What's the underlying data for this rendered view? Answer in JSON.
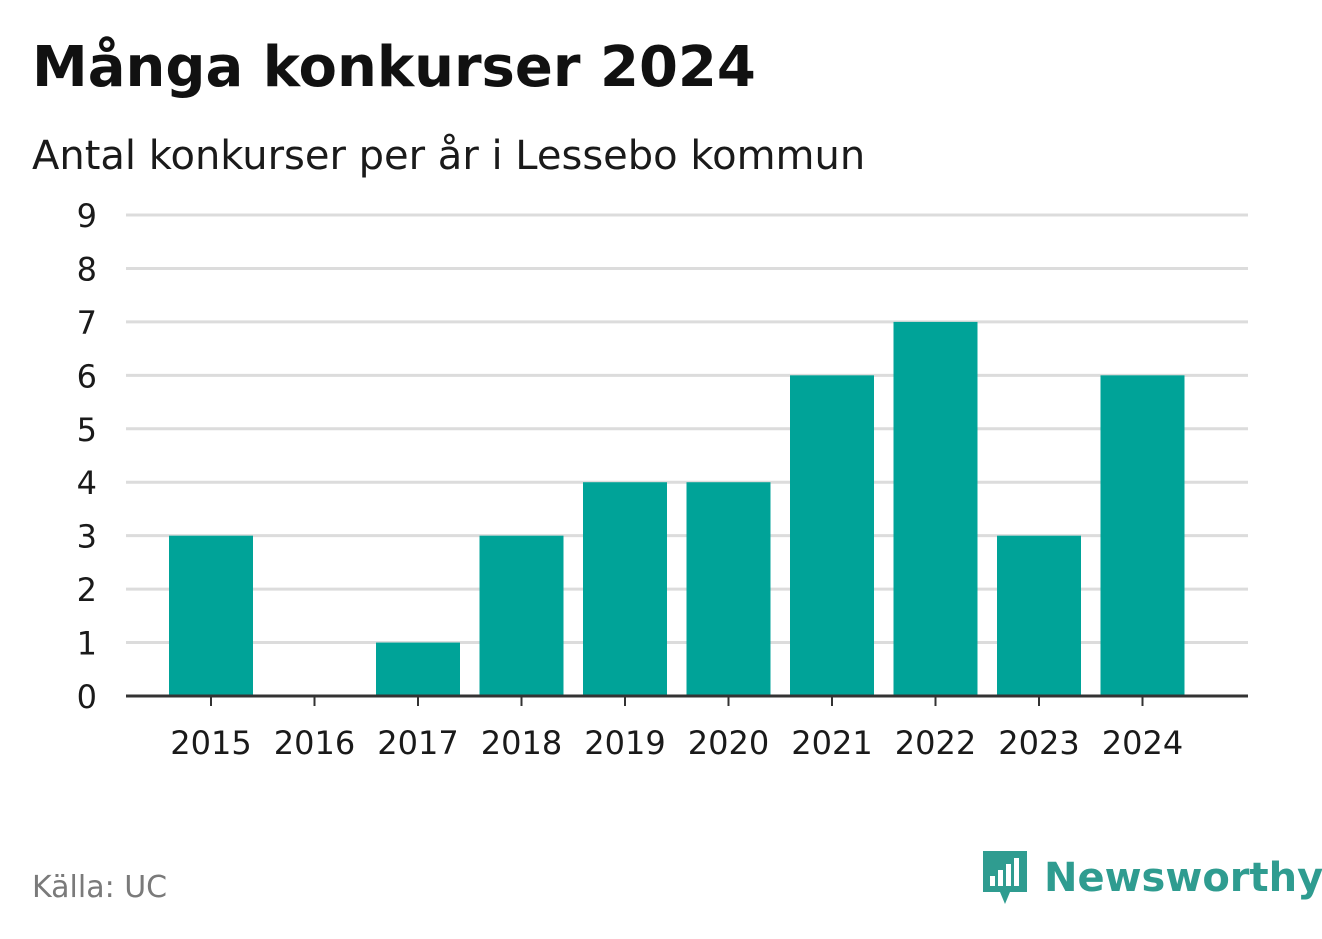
{
  "title": "Många konkurser 2024",
  "subtitle": "Antal konkurser per år i Lessebo kommun",
  "source": "Källa: UC",
  "brand": {
    "name": "Newsworthy",
    "icon": "newsworthy-logo-icon",
    "color": "#2f9c90"
  },
  "colors": {
    "bar": "#00a398",
    "grid": "#dcdcdc",
    "axis": "#333333",
    "text": "#1a1a1a"
  },
  "chart_data": {
    "type": "bar",
    "title": "Många konkurser 2024",
    "subtitle": "Antal konkurser per år i Lessebo kommun",
    "categories": [
      "2015",
      "2016",
      "2017",
      "2018",
      "2019",
      "2020",
      "2021",
      "2022",
      "2023",
      "2024"
    ],
    "values": [
      3,
      0,
      1,
      3,
      4,
      4,
      6,
      7,
      3,
      6
    ],
    "xlabel": "",
    "ylabel": "",
    "ylim": [
      0,
      9
    ],
    "yticks": [
      "0",
      "1",
      "2",
      "3",
      "4",
      "5",
      "6",
      "7",
      "8",
      "9"
    ],
    "grid": true,
    "legend": "none"
  }
}
